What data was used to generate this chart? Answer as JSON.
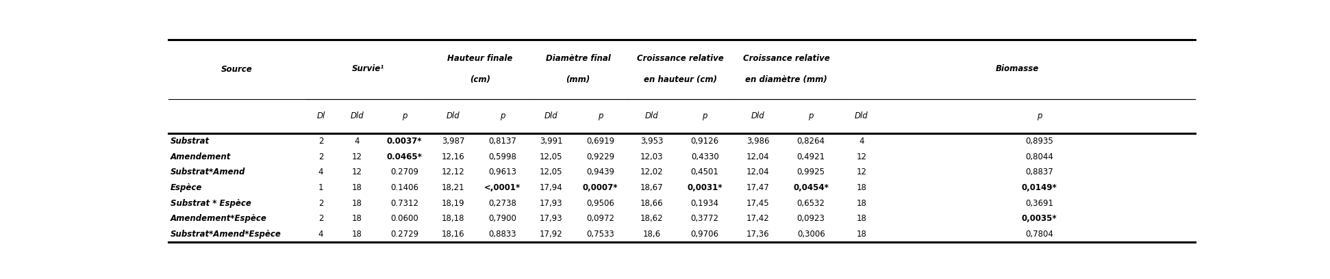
{
  "group_labels_l1": [
    "Survie¹",
    "Hauteur finale",
    "Diamètre final",
    "Croissance relative",
    "Croissance relative",
    "Biomasse"
  ],
  "group_labels_l2": [
    "",
    "(cm)",
    "(mm)",
    "en hauteur (cm)",
    "en diamètre (mm)",
    ""
  ],
  "subheaders": [
    "Dl",
    "Dld",
    "p",
    "Dld",
    "p",
    "Dld",
    "p",
    "Dld",
    "p",
    "Dld",
    "p",
    "Dld",
    "p"
  ],
  "rows": [
    {
      "source": "Substrat",
      "data": [
        "2",
        "4",
        "0.0037*",
        "3,987",
        "0,8137",
        "3,991",
        "0,6919",
        "3,953",
        "0,9126",
        "3,986",
        "0,8264",
        "4",
        "0,8935"
      ],
      "bold_cells": [
        2
      ]
    },
    {
      "source": "Amendement",
      "data": [
        "2",
        "12",
        "0.0465*",
        "12,16",
        "0,5998",
        "12,05",
        "0,9229",
        "12,03",
        "0,4330",
        "12,04",
        "0,4921",
        "12",
        "0,8044"
      ],
      "bold_cells": [
        2
      ]
    },
    {
      "source": "Substrat*Amend",
      "data": [
        "4",
        "12",
        "0.2709",
        "12,12",
        "0,9613",
        "12,05",
        "0,9439",
        "12,02",
        "0,4501",
        "12,04",
        "0,9925",
        "12",
        "0,8837"
      ],
      "bold_cells": []
    },
    {
      "source": "Espèce",
      "data": [
        "1",
        "18",
        "0.1406",
        "18,21",
        "<,0001*",
        "17,94",
        "0,0007*",
        "18,67",
        "0,0031*",
        "17,47",
        "0,0454*",
        "18",
        "0,0149*"
      ],
      "bold_cells": [
        4,
        6,
        8,
        10,
        12
      ]
    },
    {
      "source": "Substrat * Espèce",
      "data": [
        "2",
        "18",
        "0.7312",
        "18,19",
        "0,2738",
        "17,93",
        "0,9506",
        "18,66",
        "0,1934",
        "17,45",
        "0,6532",
        "18",
        "0,3691"
      ],
      "bold_cells": []
    },
    {
      "source": "Amendement*Espèce",
      "data": [
        "2",
        "18",
        "0.0600",
        "18,18",
        "0,7900",
        "17,93",
        "0,0972",
        "18,62",
        "0,3772",
        "17,42",
        "0,0923",
        "18",
        "0,0035*"
      ],
      "bold_cells": [
        12
      ]
    },
    {
      "source": "Substrat*Amend*Espèce",
      "data": [
        "4",
        "18",
        "0.2729",
        "18,16",
        "0,8833",
        "17,92",
        "0,7533",
        "18,6",
        "0,9706",
        "17,36",
        "0,3006",
        "18",
        "0,7804"
      ],
      "bold_cells": []
    }
  ],
  "bg_color": "#ffffff",
  "font_size": 8.5,
  "header_font_size": 8.5
}
